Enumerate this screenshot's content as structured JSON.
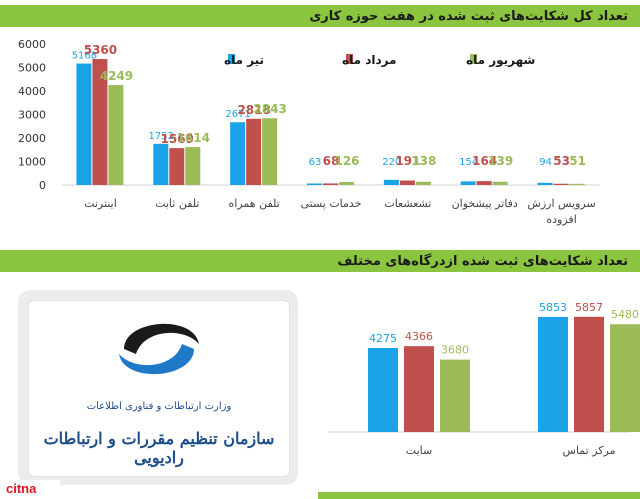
{
  "section1": {
    "title": "تعداد کل شکایت‌های ثبت شده در هفت حوزه کاری"
  },
  "section2": {
    "title": "تعداد شکایت‌های ثبت شده ازدرگاه‌های مختلف"
  },
  "logo": {
    "ministry": "وزارت ارتباطات و فناوری اطلاعات",
    "org": "سازمان تنظیم مقررات و ارتباطات رادیویی"
  },
  "watermark": "citna",
  "chart_data": [
    {
      "type": "bar",
      "title": "تعداد کل شکایت‌های ثبت شده در هفت حوزه کاری",
      "categories": [
        "اینترنت",
        "تلفن ثابت",
        "تلفن همراه",
        "خدمات پستی",
        "تشعشعات",
        "دفاتر پیشخوان",
        "سرویس ارزش افزوده"
      ],
      "series": [
        {
          "name": "تیر ماه",
          "color": "#1aa3e8",
          "values": [
            5168,
            1752,
            2671,
            63,
            220,
            154,
            94
          ]
        },
        {
          "name": "مرداد ماه",
          "color": "#c0504d",
          "values": [
            5360,
            1569,
            2818,
            68,
            191,
            164,
            53
          ]
        },
        {
          "name": "شهریور ماه",
          "color": "#9bbb59",
          "values": [
            4249,
            1614,
            2843,
            126,
            138,
            139,
            51
          ]
        }
      ],
      "yticks": [
        0,
        1000,
        2000,
        3000,
        4000,
        5000,
        6000
      ],
      "ylim": [
        0,
        6000
      ],
      "legend": "top-right",
      "grid": false
    },
    {
      "type": "bar",
      "title": "تعداد شکایت‌های ثبت شده ازدرگاه‌های مختلف",
      "categories": [
        "سایت",
        "مرکز تماس"
      ],
      "series": [
        {
          "name": "تیر ماه",
          "color": "#1aa3e8",
          "values": [
            4275,
            5853
          ]
        },
        {
          "name": "مرداد ماه",
          "color": "#c0504d",
          "values": [
            4366,
            5857
          ]
        },
        {
          "name": "شهریور ماه",
          "color": "#9bbb59",
          "values": [
            3680,
            5480
          ]
        }
      ],
      "ylim": [
        0,
        6000
      ],
      "legend": "none",
      "grid": false
    }
  ]
}
